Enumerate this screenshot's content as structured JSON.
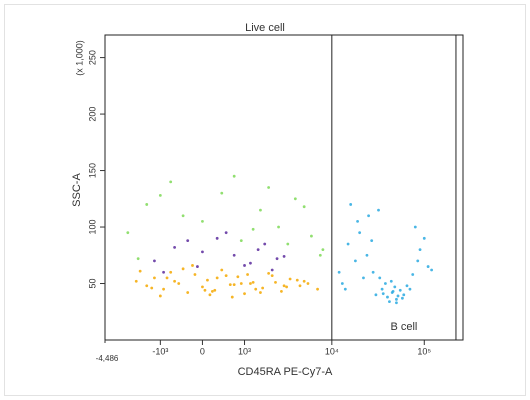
{
  "chart_data": {
    "type": "scatter",
    "title": "Live cell",
    "x_label": "CD45RA PE-Cy7-A",
    "y_label": "SSC-A",
    "y_unit_label": "(x 1,000)",
    "xscale": "biexponential",
    "xlim": [
      -4486,
      262144
    ],
    "xticks": [
      {
        "value": -4486,
        "label": "-4,486"
      },
      {
        "value": -1000,
        "label": "-10³"
      },
      0,
      {
        "value": 1000,
        "label": "10³"
      },
      {
        "value": 10000,
        "label": "10⁴"
      },
      {
        "value": 100000,
        "label": "10⁵"
      }
    ],
    "ylim": [
      0,
      270
    ],
    "yticks": [
      50,
      100,
      150,
      200,
      250
    ],
    "gate": {
      "label": "B cell",
      "x": [
        10000,
        220000
      ],
      "y": [
        0,
        270
      ]
    },
    "series": [
      {
        "color": "#f5a800",
        "x": [
          -2000,
          -1500,
          -1200,
          -900,
          -700,
          -500,
          -300,
          -150,
          0,
          100,
          250,
          400,
          600,
          800,
          1000,
          1300,
          1700,
          2200,
          2800,
          3500,
          4500,
          5500,
          7000,
          -1800,
          -1000,
          -600,
          -200,
          50,
          300,
          700,
          1100,
          1600,
          2400,
          3200,
          4200,
          -1300,
          -400,
          150,
          500,
          900,
          1400,
          2000,
          3000,
          5000,
          -800,
          200,
          650,
          1200
        ],
        "y": [
          52,
          48,
          55,
          45,
          60,
          50,
          42,
          58,
          47,
          53,
          44,
          62,
          49,
          56,
          41,
          51,
          46,
          57,
          43,
          54,
          48,
          50,
          45,
          61,
          39,
          52,
          66,
          44,
          55,
          49,
          58,
          42,
          51,
          47,
          53,
          46,
          63,
          40,
          57,
          50,
          45,
          59,
          48,
          52,
          55,
          43,
          38,
          50
        ]
      },
      {
        "color": "#5b2a9c",
        "x": [
          -1200,
          -600,
          -100,
          300,
          700,
          1200,
          1800,
          2500,
          -900,
          0,
          500,
          1000,
          1500,
          2200,
          3000,
          -300
        ],
        "y": [
          70,
          82,
          65,
          90,
          75,
          68,
          85,
          72,
          60,
          78,
          95,
          66,
          80,
          62,
          74,
          88
        ]
      },
      {
        "color": "#7ed957",
        "x": [
          -2500,
          -1500,
          -700,
          0,
          400,
          900,
          1600,
          2600,
          4000,
          6000,
          8000,
          -1900,
          -400,
          700,
          1300,
          2000,
          3300,
          5000,
          7500,
          -1000
        ],
        "y": [
          95,
          120,
          140,
          105,
          130,
          88,
          115,
          100,
          125,
          92,
          80,
          72,
          110,
          145,
          98,
          135,
          85,
          118,
          75,
          128
        ]
      },
      {
        "color": "#29a9e0",
        "x": [
          30000,
          35000,
          40000,
          45000,
          50000,
          55000,
          60000,
          38000,
          42000,
          48000,
          52000,
          33000,
          46000,
          58000,
          65000,
          36000,
          44000,
          50000,
          28000,
          70000,
          12000,
          15000,
          20000,
          25000,
          18000,
          14000,
          90000,
          110000,
          80000,
          22000,
          16000,
          24000,
          75000,
          100000,
          13000,
          19000,
          27000,
          85000,
          120000,
          32000
        ],
        "y": [
          40,
          45,
          38,
          42,
          36,
          44,
          40,
          50,
          34,
          47,
          39,
          55,
          43,
          37,
          48,
          41,
          52,
          33,
          60,
          45,
          60,
          85,
          95,
          110,
          70,
          45,
          80,
          65,
          100,
          55,
          120,
          75,
          58,
          90,
          50,
          105,
          88,
          70,
          62,
          115
        ]
      }
    ]
  }
}
